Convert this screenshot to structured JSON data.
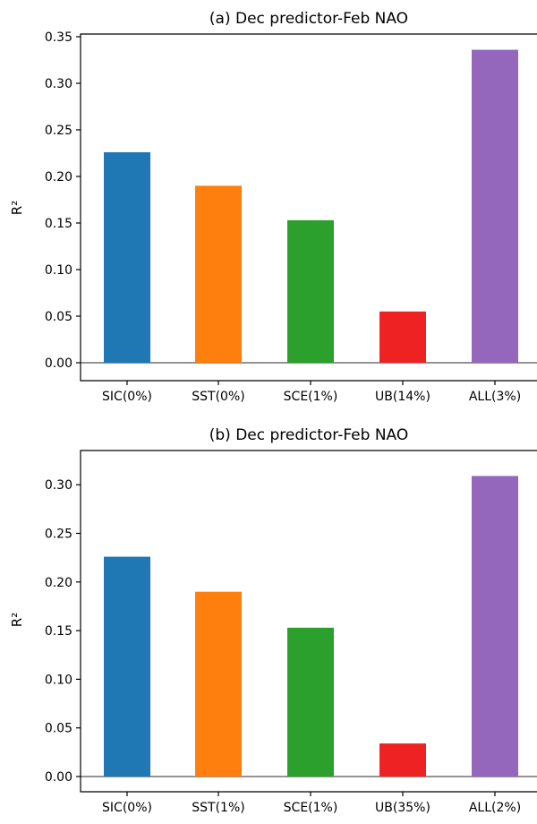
{
  "chart_data": [
    {
      "type": "bar",
      "title": "(a) Dec predictor-Feb NAO",
      "ylabel": "R²",
      "xlabel": "",
      "ylim": [
        -0.014,
        0.355
      ],
      "yticks": [
        "0.00",
        "0.05",
        "0.10",
        "0.15",
        "0.20",
        "0.25",
        "0.30",
        "0.35"
      ],
      "categories": [
        "SIC(0%)",
        "SST(0%)",
        "SCE(1%)",
        "UB(14%)",
        "ALL(3%)"
      ],
      "values": [
        0.226,
        0.19,
        0.153,
        0.055,
        0.336
      ],
      "colors": [
        "#1f77b4",
        "#ff7f0e",
        "#2ca02c",
        "#ee2222",
        "#9467bd"
      ],
      "zero_line": true
    },
    {
      "type": "bar",
      "title": "(b) Dec predictor-Feb NAO",
      "ylabel": "R²",
      "xlabel": "",
      "ylim": [
        -0.014,
        0.325
      ],
      "yticks": [
        "0.00",
        "0.05",
        "0.10",
        "0.15",
        "0.20",
        "0.25",
        "0.30"
      ],
      "categories": [
        "SIC(0%)",
        "SST(1%)",
        "SCE(1%)",
        "UB(35%)",
        "ALL(2%)"
      ],
      "values": [
        0.226,
        0.19,
        0.153,
        0.034,
        0.309
      ],
      "colors": [
        "#1f77b4",
        "#ff7f0e",
        "#2ca02c",
        "#ee2222",
        "#9467bd"
      ],
      "zero_line": true
    }
  ]
}
